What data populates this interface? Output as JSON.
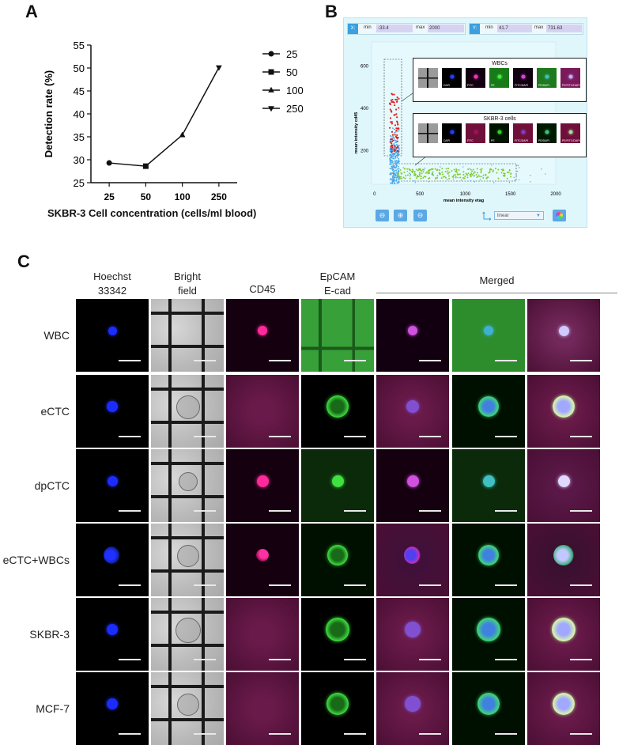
{
  "panels": {
    "a": "A",
    "b": "B",
    "c": "C"
  },
  "chart_data": {
    "type": "line",
    "categories": [
      "25",
      "50",
      "100",
      "250"
    ],
    "values": [
      29.3,
      28.6,
      35.4,
      50.1
    ],
    "ylabel": "Detection rate (%)",
    "xlabel": "SKBR-3 Cell concentration (cells/ml blood)",
    "ylim": [
      25,
      55
    ],
    "yticks": [
      "25",
      "30",
      "35",
      "40",
      "45",
      "50",
      "55"
    ],
    "legend": [
      {
        "label": "25",
        "marker": "circle"
      },
      {
        "label": "50",
        "marker": "square"
      },
      {
        "label": "100",
        "marker": "triangle-up"
      },
      {
        "label": "250",
        "marker": "triangle-down"
      }
    ],
    "legend_position": "right"
  },
  "panelB": {
    "x_range": {
      "tag": "X:",
      "min_label": "min",
      "min": "-33.4",
      "max_label": "max",
      "max": "2000"
    },
    "y_range": {
      "tag": "Y:",
      "min_label": "min",
      "min": "41.7",
      "max_label": "max",
      "max": "731.63"
    },
    "ylabel": "mean intensity cd45",
    "xlabel": "mean intensity etag",
    "yticks": [
      "600",
      "400",
      "200"
    ],
    "xticks": [
      "0",
      "500",
      "1000",
      "1500",
      "2000"
    ],
    "scale_select": "linear",
    "insets": [
      {
        "title": "WBCs",
        "channels": [
          "",
          "DAPI",
          "FITC",
          "PE",
          "FITC/DAPI",
          "PE/DAPI",
          "PE/FITC/DAPI"
        ]
      },
      {
        "title": "SKBR-3 cells",
        "channels": [
          "",
          "DAPI",
          "FITC",
          "PE",
          "FITC/DAPI",
          "PE/DAPI",
          "PE/FITC/DAPI"
        ]
      }
    ],
    "colors": {
      "wbc": "#e02020",
      "ctc": "#7fcc30",
      "other": "#4aa8e8"
    }
  },
  "panelC": {
    "columns": [
      {
        "line1": "Hoechst",
        "line2": "33342"
      },
      {
        "line1": "Bright",
        "line2": "field"
      },
      {
        "line1": "CD45",
        "line2": ""
      },
      {
        "line1": "EpCAM",
        "line2": "E-cad"
      }
    ],
    "merged_label": "Merged",
    "rows": [
      "WBC",
      "eCTC",
      "dpCTC",
      "eCTC+WBCs",
      "SKBR-3",
      "MCF-7"
    ]
  }
}
